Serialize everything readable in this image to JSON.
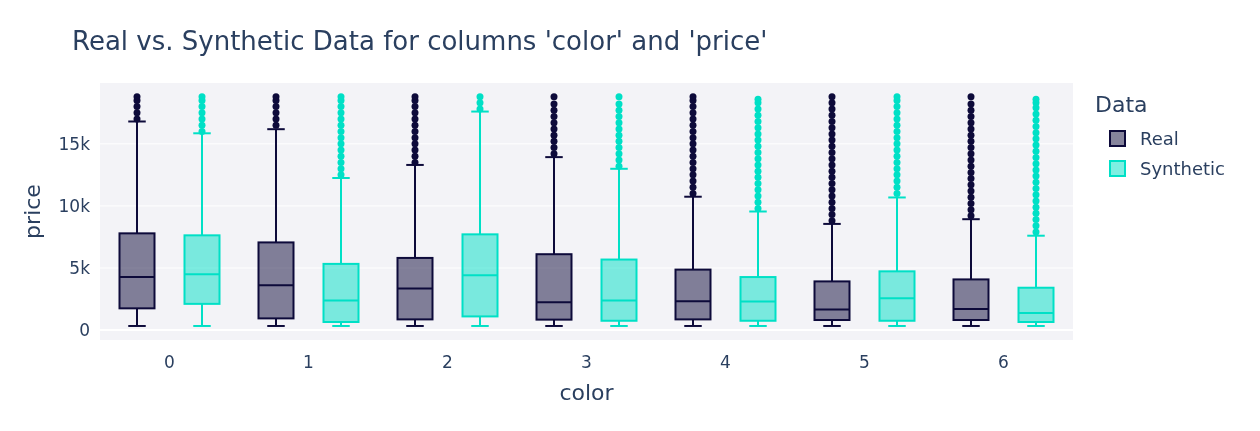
{
  "chart_data": {
    "type": "box",
    "title": "Real vs. Synthetic Data for columns 'color' and 'price'",
    "xlabel": "color",
    "ylabel": "price",
    "legend_title": "Data",
    "legend": "top right",
    "grid": "y",
    "categories": [
      "0",
      "1",
      "2",
      "3",
      "4",
      "5",
      "6"
    ],
    "ylim": [
      -800,
      19900
    ],
    "yticks": [
      0,
      {
        "value": 5000,
        "label": "5k"
      },
      {
        "value": 10000,
        "label": "10k"
      },
      {
        "value": 15000,
        "label": "15k"
      }
    ],
    "series": [
      {
        "name": "Real",
        "color": "#0d0a3a",
        "boxes": [
          {
            "low": 330,
            "q1": 1750,
            "median": 4270,
            "q3": 7790,
            "high": 16800,
            "outliers": [
              17000,
              17500,
              18000,
              18500,
              18800
            ]
          },
          {
            "low": 330,
            "q1": 940,
            "median": 3600,
            "q3": 7060,
            "high": 16180,
            "outliers": [
              16500,
              17000,
              17500,
              18000,
              18500,
              18800
            ]
          },
          {
            "low": 330,
            "q1": 860,
            "median": 3350,
            "q3": 5810,
            "high": 13300,
            "outliers": [
              13500,
              14000,
              14500,
              15000,
              15500,
              16000,
              16500,
              17000,
              17500,
              18000,
              18500,
              18800
            ]
          },
          {
            "low": 330,
            "q1": 840,
            "median": 2240,
            "q3": 6110,
            "high": 13930,
            "outliers": [
              14200,
              14700,
              15200,
              15700,
              16200,
              16700,
              17200,
              17700,
              18200,
              18800
            ]
          },
          {
            "low": 330,
            "q1": 860,
            "median": 2320,
            "q3": 4870,
            "high": 10740,
            "outliers": [
              11000,
              11500,
              12000,
              12500,
              13000,
              13500,
              14000,
              14500,
              15000,
              15500,
              16000,
              16500,
              17000,
              17500,
              18000,
              18500,
              18800
            ]
          },
          {
            "low": 330,
            "q1": 810,
            "median": 1650,
            "q3": 3920,
            "high": 8550,
            "outliers": [
              8800,
              9300,
              9800,
              10300,
              10800,
              11300,
              11800,
              12300,
              12800,
              13300,
              13800,
              14300,
              14800,
              15300,
              15800,
              16300,
              16800,
              17300,
              17800,
              18300,
              18800
            ]
          },
          {
            "low": 330,
            "q1": 810,
            "median": 1700,
            "q3": 4080,
            "high": 8930,
            "outliers": [
              9200,
              9700,
              10200,
              10700,
              11200,
              11700,
              12200,
              12700,
              13200,
              13700,
              14200,
              14700,
              15200,
              15700,
              16200,
              16700,
              17200,
              17700,
              18200,
              18800
            ]
          }
        ]
      },
      {
        "name": "Synthetic",
        "color": "#00e0c6",
        "boxes": [
          {
            "low": 330,
            "q1": 2110,
            "median": 4490,
            "q3": 7630,
            "high": 15850,
            "outliers": [
              16000,
              16500,
              17000,
              17500,
              18000,
              18500,
              18800
            ]
          },
          {
            "low": 330,
            "q1": 650,
            "median": 2380,
            "q3": 5330,
            "high": 12250,
            "outliers": [
              12500,
              13000,
              13500,
              14000,
              14500,
              15000,
              15500,
              16000,
              16500,
              17000,
              17500,
              18000,
              18500,
              18800
            ]
          },
          {
            "low": 330,
            "q1": 1100,
            "median": 4410,
            "q3": 7710,
            "high": 17600,
            "outliers": [
              17800,
              18300,
              18800
            ]
          },
          {
            "low": 330,
            "q1": 750,
            "median": 2380,
            "q3": 5680,
            "high": 12990,
            "outliers": [
              13200,
              13700,
              14200,
              14700,
              15200,
              15700,
              16200,
              16700,
              17200,
              17700,
              18200,
              18800
            ]
          },
          {
            "low": 330,
            "q1": 750,
            "median": 2300,
            "q3": 4270,
            "high": 9550,
            "outliers": [
              9800,
              10300,
              10800,
              11300,
              11800,
              12300,
              12800,
              13300,
              13800,
              14300,
              14800,
              15300,
              15800,
              16300,
              16800,
              17300,
              17800,
              18300,
              18600
            ]
          },
          {
            "low": 330,
            "q1": 750,
            "median": 2560,
            "q3": 4730,
            "high": 10680,
            "outliers": [
              11000,
              11500,
              12000,
              12500,
              13000,
              13500,
              14000,
              14500,
              15000,
              15500,
              16000,
              16500,
              17000,
              17500,
              18000,
              18500,
              18800
            ]
          },
          {
            "low": 330,
            "q1": 650,
            "median": 1380,
            "q3": 3410,
            "high": 7600,
            "outliers": [
              7900,
              8400,
              8900,
              9400,
              9900,
              10400,
              10900,
              11400,
              11900,
              12400,
              12900,
              13400,
              13900,
              14400,
              14900,
              15400,
              15900,
              16400,
              16900,
              17400,
              17900,
              18300,
              18600
            ]
          }
        ]
      }
    ]
  }
}
